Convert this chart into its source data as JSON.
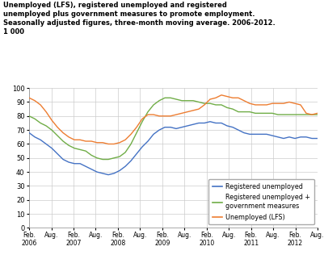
{
  "title": "Unemployed (LFS), registered unemployed and registered\nunemployed plus government measures to promote employment.\nSeasonally adjusted figures, three-month moving average. 2006-2012.\n1 000",
  "ylim": [
    0,
    100
  ],
  "yticks": [
    0,
    10,
    20,
    30,
    40,
    50,
    60,
    70,
    80,
    90,
    100
  ],
  "colors": {
    "registered": "#4472c4",
    "reg_plus_gov": "#70ad47",
    "lfs": "#ed7d31"
  },
  "legend_labels": [
    "Registered unemployed",
    "Registered unemployed +\ngovernment measures",
    "Unemployed (LFS)"
  ],
  "registered_unemployed": [
    68,
    65,
    63,
    60,
    57,
    53,
    49,
    47,
    46,
    46,
    44,
    42,
    40,
    39,
    38,
    39,
    41,
    44,
    48,
    53,
    58,
    62,
    67,
    70,
    72,
    72,
    71,
    72,
    73,
    74,
    75,
    75,
    76,
    75,
    75,
    73,
    72,
    70,
    68,
    67,
    67,
    67,
    67,
    66,
    65,
    64,
    65,
    64,
    65,
    65,
    64,
    64
  ],
  "reg_plus_gov": [
    80,
    78,
    75,
    73,
    70,
    66,
    62,
    59,
    57,
    56,
    55,
    52,
    50,
    49,
    49,
    50,
    51,
    54,
    60,
    68,
    76,
    83,
    88,
    91,
    93,
    93,
    92,
    91,
    91,
    91,
    90,
    89,
    89,
    88,
    88,
    86,
    85,
    83,
    83,
    83,
    82,
    82,
    82,
    82,
    81,
    81,
    81,
    81,
    81,
    81,
    81,
    81
  ],
  "lfs_unemployed": [
    93,
    91,
    88,
    83,
    77,
    72,
    68,
    65,
    63,
    63,
    62,
    62,
    61,
    61,
    60,
    60,
    61,
    63,
    67,
    72,
    78,
    81,
    81,
    80,
    80,
    80,
    81,
    82,
    83,
    84,
    85,
    88,
    92,
    93,
    95,
    94,
    93,
    93,
    91,
    89,
    88,
    88,
    88,
    89,
    89,
    89,
    90,
    89,
    88,
    82,
    81,
    82
  ],
  "n_points": 52,
  "xtick_positions": [
    0,
    6,
    12,
    18,
    24,
    30,
    36,
    42,
    48,
    54,
    60,
    66,
    72,
    78
  ],
  "xtick_labels": [
    "Feb.\n2006",
    "Aug.",
    "Feb.\n2007",
    "Aug.",
    "Feb.\n2008",
    "Aug.",
    "Feb.\n2009",
    "Aug.",
    "Feb.\n2010",
    "Aug.",
    "Feb.\n2011",
    "Aug.",
    "Feb.\n2012",
    "Aug."
  ],
  "background_color": "#ffffff",
  "grid_color": "#cccccc"
}
